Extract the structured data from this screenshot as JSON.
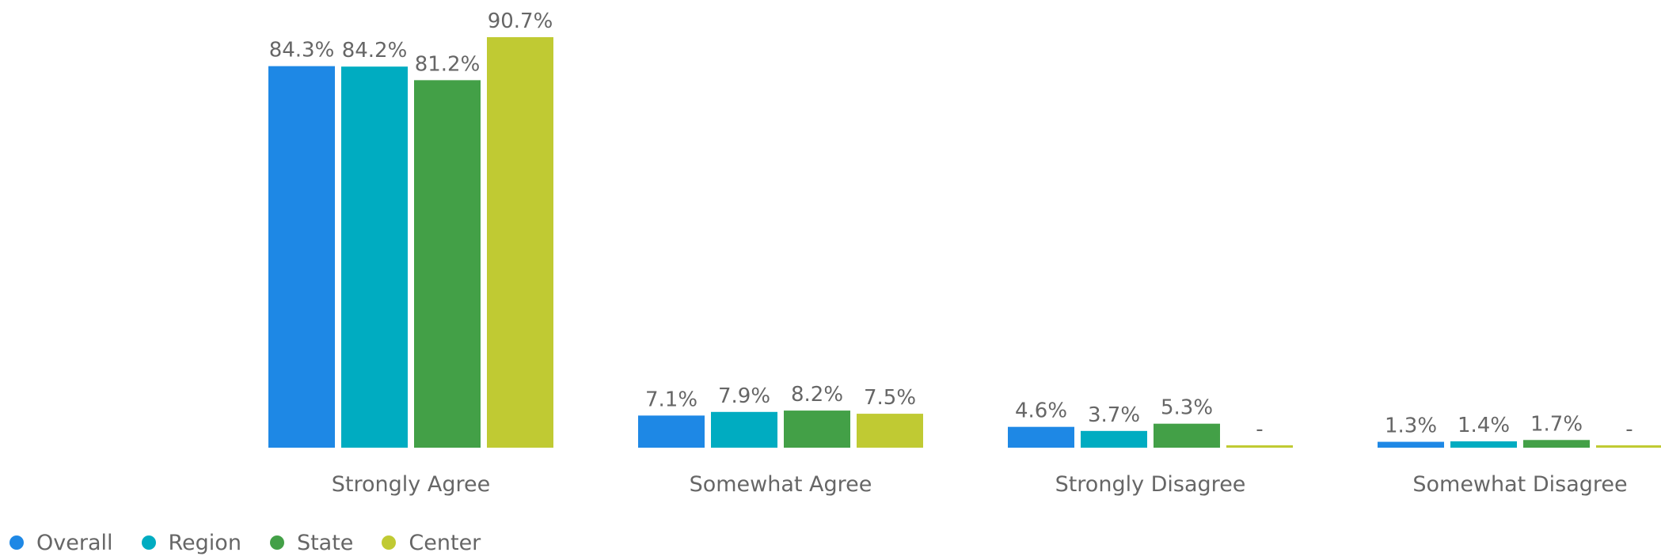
{
  "chart_data": {
    "type": "bar",
    "categories": [
      "Strongly Agree",
      "Somewhat Agree",
      "Strongly Disagree",
      "Somewhat Disagree"
    ],
    "series": [
      {
        "name": "Overall",
        "color": "#1e88e5",
        "values": [
          84.3,
          7.1,
          4.6,
          1.3
        ],
        "labels": [
          "84.3%",
          "7.1%",
          "4.6%",
          "1.3%"
        ]
      },
      {
        "name": "Region",
        "color": "#00acc1",
        "values": [
          84.2,
          7.9,
          3.7,
          1.4
        ],
        "labels": [
          "84.2%",
          "7.9%",
          "3.7%",
          "1.4%"
        ]
      },
      {
        "name": "State",
        "color": "#43a047",
        "values": [
          81.2,
          8.2,
          5.3,
          1.7
        ],
        "labels": [
          "81.2%",
          "8.2%",
          "5.3%",
          "1.7%"
        ]
      },
      {
        "name": "Center",
        "color": "#c0ca33",
        "values": [
          90.7,
          7.5,
          null,
          null
        ],
        "labels": [
          "90.7%",
          "7.5%",
          "-",
          "-"
        ]
      }
    ],
    "ylim": [
      0,
      90.7
    ],
    "grid": false,
    "legend_position": "bottom-left"
  }
}
